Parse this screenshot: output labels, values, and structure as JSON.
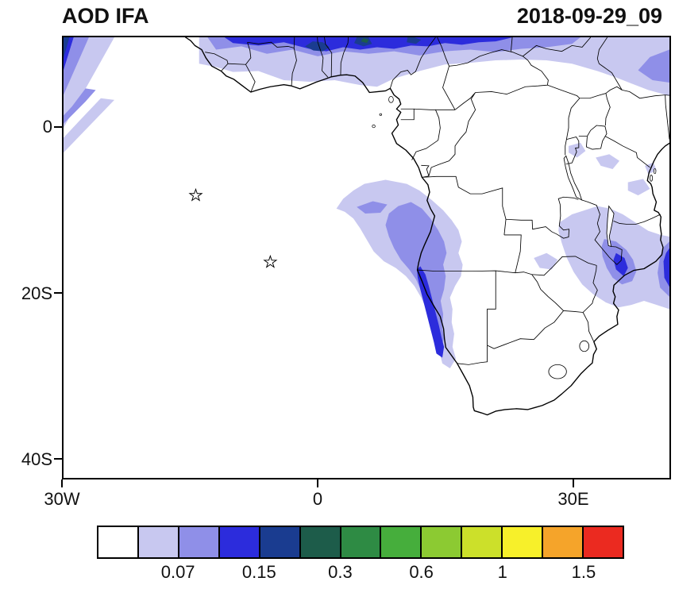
{
  "title": "AOD IFA",
  "timestamp": "2018-09-29_09",
  "axes": {
    "y_ticks": [
      "0",
      "20S",
      "40S"
    ],
    "x_ticks": [
      "30W",
      "0",
      "30E"
    ]
  },
  "colorbar": {
    "colors": [
      "#FFFFFF",
      "#C8C8F0",
      "#8F8FE8",
      "#2C2CDC",
      "#1A3C90",
      "#1D5C4A",
      "#2E8B44",
      "#46AE3C",
      "#8CCA32",
      "#CCE02A",
      "#F7F02A",
      "#F5A42A",
      "#EB2A20"
    ],
    "labels": [
      "0.07",
      "0.15",
      "0.3",
      "0.6",
      "1",
      "1.5"
    ]
  },
  "markers": [
    {
      "name": "star-marker-west",
      "lon": -14.4,
      "lat": -8.2
    },
    {
      "name": "star-marker-east",
      "lon": -5.6,
      "lat": -16.3
    }
  ],
  "map": {
    "lon_min": -30,
    "lon_max": 41.5,
    "lat_min": -42.5,
    "lat_max": 11
  },
  "chart_data": {
    "type": "heatmap",
    "title": "AOD IFA",
    "timestamp": "2018-09-29_09",
    "variable": "AOD",
    "region": "Africa / South Atlantic",
    "lon_range": [
      -30,
      41.5
    ],
    "lat_range": [
      -42.5,
      11
    ],
    "x_tick_labels": [
      "30W",
      "0",
      "30E"
    ],
    "y_tick_labels": [
      "0",
      "20S",
      "40S"
    ],
    "colorbar_labeled_levels": [
      0.07,
      0.15,
      0.3,
      0.6,
      1,
      1.5
    ],
    "colorbar_colors": [
      "#FFFFFF",
      "#C8C8F0",
      "#8F8FE8",
      "#2C2CDC",
      "#1A3C90",
      "#1D5C4A",
      "#2E8B44",
      "#46AE3C",
      "#8CCA32",
      "#CCE02A",
      "#F7F02A",
      "#F5A42A",
      "#EB2A20"
    ],
    "legend_position": "bottom",
    "features": [
      "Sahel dust band along northern edge",
      "NW corner Atlantic dust streaks",
      "SE Atlantic smoke plume along Angola-Namibia coast",
      "Mozambique / Malawi plume reaching east edge",
      "two island star markers in South Atlantic"
    ]
  }
}
